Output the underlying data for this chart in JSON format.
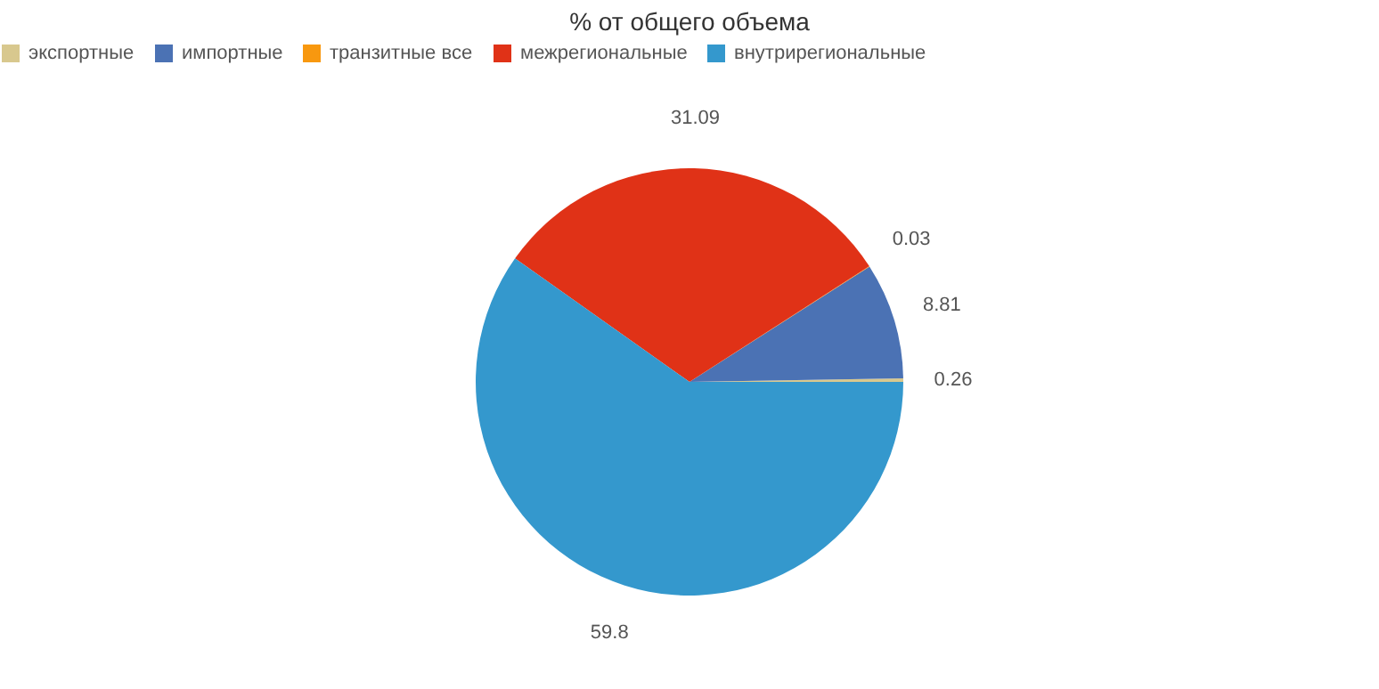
{
  "chart_data": {
    "type": "pie",
    "title": "% от общего объема",
    "categories": [
      "экспортные",
      "импортные",
      "транзитные все",
      "межрегиональные",
      "внутрирегиональные"
    ],
    "values": [
      0.26,
      8.81,
      0.03,
      31.09,
      59.8
    ],
    "colors": [
      "#d8c88e",
      "#4b72b4",
      "#f8980f",
      "#e03217",
      "#3498cd"
    ],
    "data_labels": true,
    "legend": "top"
  }
}
